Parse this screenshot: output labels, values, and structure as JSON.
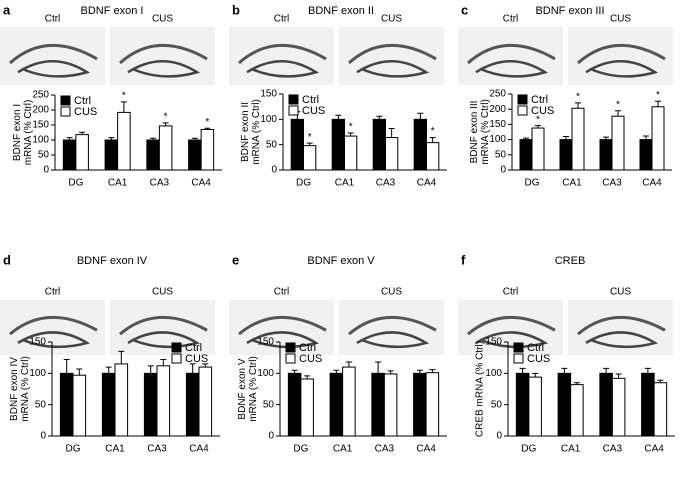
{
  "chart_data": [
    {
      "type": "bar",
      "panel": "a",
      "title": "BDNF exon I",
      "image_labels": [
        "Ctrl",
        "CUS"
      ],
      "ylabel": [
        "BDNF exon I",
        "mRNA (% Ctrl)"
      ],
      "categories": [
        "DG",
        "CA1",
        "CA3",
        "CA4"
      ],
      "ylim": [
        0,
        250
      ],
      "yticks": [
        0,
        50,
        100,
        150,
        200,
        250
      ],
      "legend": "upper left",
      "annotation": "*",
      "series": [
        {
          "name": "Ctrl",
          "color": "#000000",
          "values": [
            100,
            100,
            100,
            100
          ],
          "errors": [
            8,
            8,
            6,
            6
          ],
          "significant": [
            false,
            false,
            false,
            false
          ]
        },
        {
          "name": "CUS",
          "color": "#ffffff",
          "values": [
            118,
            192,
            147,
            135
          ],
          "errors": [
            8,
            35,
            10,
            4
          ],
          "significant": [
            false,
            true,
            true,
            true
          ]
        }
      ]
    },
    {
      "type": "bar",
      "panel": "b",
      "title": "BDNF exon II",
      "image_labels": [
        "Ctrl",
        "CUS"
      ],
      "ylabel": [
        "BDNF exon II",
        "mRNA (% Ctrl)"
      ],
      "categories": [
        "DG",
        "CA1",
        "CA3",
        "CA4"
      ],
      "ylim": [
        0,
        150
      ],
      "yticks": [
        0,
        50,
        100,
        150
      ],
      "legend": "upper left",
      "annotation": "*",
      "series": [
        {
          "name": "Ctrl",
          "color": "#000000",
          "values": [
            100,
            100,
            100,
            100
          ],
          "errors": [
            15,
            8,
            6,
            12
          ],
          "significant": [
            false,
            false,
            false,
            false
          ]
        },
        {
          "name": "CUS",
          "color": "#ffffff",
          "values": [
            48,
            67,
            64,
            54
          ],
          "errors": [
            5,
            6,
            18,
            10
          ],
          "significant": [
            true,
            true,
            false,
            true
          ]
        }
      ]
    },
    {
      "type": "bar",
      "panel": "c",
      "title": "BDNF exon III",
      "image_labels": [
        "Ctrl",
        "CUS"
      ],
      "ylabel": [
        "BDNF exon III",
        "mRNA (% Ctrl)"
      ],
      "categories": [
        "DG",
        "CA1",
        "CA3",
        "CA4"
      ],
      "ylim": [
        0,
        250
      ],
      "yticks": [
        0,
        50,
        100,
        150,
        200,
        250
      ],
      "legend": "upper left",
      "annotation": "*",
      "series": [
        {
          "name": "Ctrl",
          "color": "#000000",
          "values": [
            100,
            100,
            100,
            100
          ],
          "errors": [
            5,
            10,
            8,
            12
          ],
          "significant": [
            false,
            false,
            false,
            false
          ]
        },
        {
          "name": "CUS",
          "color": "#ffffff",
          "values": [
            138,
            203,
            177,
            208
          ],
          "errors": [
            8,
            18,
            18,
            18
          ],
          "significant": [
            true,
            true,
            true,
            true
          ]
        }
      ]
    },
    {
      "type": "bar",
      "panel": "d",
      "title": "BDNF exon IV",
      "image_labels": [
        "Ctrl",
        "CUS"
      ],
      "ylabel": [
        "BDNF exon IV",
        "mRNA (% Ctrl)"
      ],
      "categories": [
        "DG",
        "CA1",
        "CA3",
        "CA4"
      ],
      "ylim": [
        0,
        150
      ],
      "yticks": [
        0,
        50,
        100,
        150
      ],
      "legend": "upper right",
      "annotation": "*",
      "series": [
        {
          "name": "Ctrl",
          "color": "#000000",
          "values": [
            100,
            100,
            100,
            100
          ],
          "errors": [
            22,
            10,
            12,
            15
          ],
          "significant": [
            false,
            false,
            false,
            false
          ]
        },
        {
          "name": "CUS",
          "color": "#ffffff",
          "values": [
            97,
            115,
            112,
            110
          ],
          "errors": [
            10,
            20,
            10,
            5
          ],
          "significant": [
            false,
            false,
            false,
            false
          ]
        }
      ]
    },
    {
      "type": "bar",
      "panel": "e",
      "title": "BDNF exon V",
      "image_labels": [
        "Ctrl",
        "CUS"
      ],
      "ylabel": [
        "BDNF exon V",
        "mRNA (% Ctrl)"
      ],
      "categories": [
        "DG",
        "CA1",
        "CA3",
        "CA4"
      ],
      "ylim": [
        0,
        150
      ],
      "yticks": [
        0,
        50,
        100,
        150
      ],
      "legend": "upper left",
      "annotation": "*",
      "series": [
        {
          "name": "Ctrl",
          "color": "#000000",
          "values": [
            100,
            100,
            100,
            100
          ],
          "errors": [
            5,
            5,
            18,
            5
          ],
          "significant": [
            false,
            false,
            false,
            false
          ]
        },
        {
          "name": "CUS",
          "color": "#ffffff",
          "values": [
            91,
            110,
            99,
            101
          ],
          "errors": [
            5,
            8,
            5,
            5
          ],
          "significant": [
            false,
            false,
            false,
            false
          ]
        }
      ]
    },
    {
      "type": "bar",
      "panel": "f",
      "title": "CREB",
      "image_labels": [
        "Ctrl",
        "CUS"
      ],
      "ylabel": [
        "CREB mRNA (% Ctrl)"
      ],
      "categories": [
        "DG",
        "CA1",
        "CA3",
        "CA4"
      ],
      "ylim": [
        0,
        150
      ],
      "yticks": [
        0,
        50,
        100,
        150
      ],
      "legend": "upper left",
      "annotation": "*",
      "series": [
        {
          "name": "Ctrl",
          "color": "#000000",
          "values": [
            100,
            100,
            100,
            100
          ],
          "errors": [
            8,
            8,
            8,
            8
          ],
          "significant": [
            false,
            false,
            false,
            false
          ]
        },
        {
          "name": "CUS",
          "color": "#ffffff",
          "values": [
            94,
            82,
            92,
            85
          ],
          "errors": [
            6,
            3,
            7,
            4
          ],
          "significant": [
            false,
            false,
            false,
            false
          ]
        }
      ]
    }
  ]
}
